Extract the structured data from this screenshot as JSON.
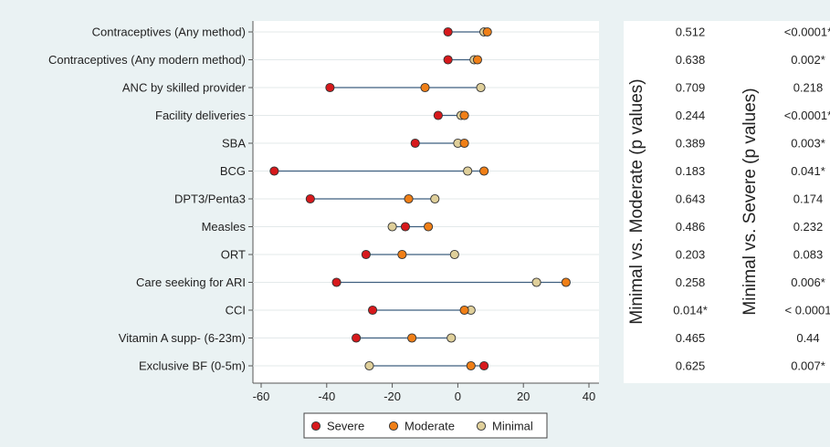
{
  "chart_data": {
    "type": "dot",
    "categories": [
      "Contraceptives (Any method)",
      "Contraceptives (Any modern method)",
      "ANC by skilled provider",
      "Facility deliveries",
      "SBA",
      "BCG",
      "DPT3/Penta3",
      "Measles",
      "ORT",
      "Care seeking for ARI",
      "CCI",
      "Vitamin A supp- (6-23m)",
      "Exclusive BF (0-5m)"
    ],
    "series": [
      {
        "name": "Severe",
        "color": "#d7191c",
        "values": [
          -3,
          -3,
          -39,
          -6,
          -13,
          -56,
          -45,
          -16,
          -28,
          -37,
          -26,
          -31,
          8
        ]
      },
      {
        "name": "Moderate",
        "color": "#f07f17",
        "values": [
          9,
          6,
          -10,
          2,
          2,
          8,
          -15,
          -9,
          -17,
          33,
          2,
          -14,
          4
        ]
      },
      {
        "name": "Minimal",
        "color": "#dfcf9a",
        "values": [
          8,
          5,
          7,
          1,
          0,
          3,
          -7,
          -20,
          -1,
          24,
          4,
          -2,
          -27
        ]
      }
    ],
    "xlim": [
      -60,
      40
    ],
    "xticks": [
      -60,
      -40,
      -20,
      0,
      20,
      40
    ],
    "legend_position": "bottom",
    "p_values": {
      "minimal_vs_moderate": {
        "label": "Minimal vs. Moderate (p values)",
        "values": [
          "0.512",
          "0.638",
          "0.709",
          "0.244",
          "0.389",
          "0.183",
          "0.643",
          "0.486",
          "0.203",
          "0.258",
          "0.014*",
          "0.465",
          "0.625"
        ]
      },
      "minimal_vs_severe": {
        "label": "Minimal vs. Severe (p values)",
        "values": [
          "<0.0001*",
          "0.002*",
          "0.218",
          "<0.0001*",
          "0.003*",
          "0.041*",
          "0.174",
          "0.232",
          "0.083",
          "0.006*",
          "< 0.0001",
          "0.44",
          "0.007*"
        ]
      }
    }
  }
}
